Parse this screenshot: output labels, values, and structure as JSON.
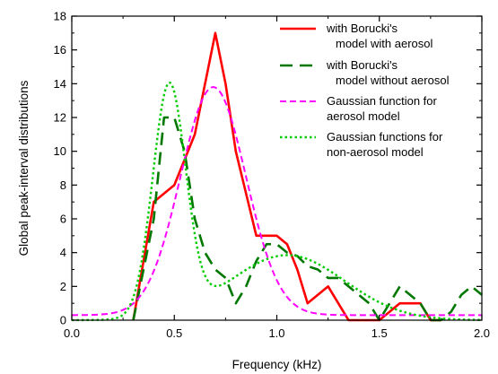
{
  "chart_data": {
    "type": "line",
    "xlabel": "Frequency (kHz)",
    "ylabel": "Global peak-interval distributions",
    "xlim": [
      0.0,
      2.0
    ],
    "ylim": [
      0,
      18
    ],
    "xticks": [
      0.0,
      0.5,
      1.0,
      1.5,
      2.0
    ],
    "xtick_labels": [
      "0.0",
      "0.5",
      "1.0",
      "1.5",
      "2.0"
    ],
    "yticks": [
      0,
      2,
      4,
      6,
      8,
      10,
      12,
      14,
      16,
      18
    ],
    "ytick_labels": [
      "0",
      "2",
      "4",
      "6",
      "8",
      "10",
      "12",
      "14",
      "16",
      "18"
    ],
    "grid": false,
    "legend_position": "top-right",
    "series": [
      {
        "name": "with Borucki's model with aerosol",
        "legend_lines": [
          "with Borucki's",
          "model with aerosol"
        ],
        "color": "#ff0000",
        "style": "solid",
        "x": [
          0.3,
          0.35,
          0.4,
          0.45,
          0.5,
          0.55,
          0.6,
          0.65,
          0.7,
          0.75,
          0.8,
          0.85,
          0.9,
          0.95,
          1.0,
          1.05,
          1.1,
          1.15,
          1.2,
          1.25,
          1.3,
          1.35,
          1.4,
          1.45,
          1.5,
          1.55,
          1.6,
          1.65,
          1.7,
          1.75,
          1.8
        ],
        "y": [
          0,
          3.5,
          7,
          7.5,
          8,
          9.5,
          11,
          14,
          17,
          14,
          10,
          7.5,
          5,
          5,
          5,
          4.5,
          3,
          1,
          1.5,
          2,
          1,
          0,
          0,
          0,
          0,
          0.5,
          1,
          1,
          1,
          0,
          0
        ]
      },
      {
        "name": "with Borucki's model without aerosol",
        "legend_lines": [
          "with Borucki's",
          "model without aerosol"
        ],
        "color": "#007700",
        "style": "dash",
        "x": [
          0.3,
          0.35,
          0.4,
          0.45,
          0.5,
          0.55,
          0.6,
          0.65,
          0.7,
          0.75,
          0.8,
          0.85,
          0.9,
          0.95,
          1.0,
          1.05,
          1.1,
          1.15,
          1.2,
          1.25,
          1.3,
          1.35,
          1.4,
          1.45,
          1.5,
          1.55,
          1.6,
          1.65,
          1.7,
          1.75,
          1.8,
          1.85,
          1.9,
          1.95,
          2.0
        ],
        "y": [
          0,
          3,
          6,
          12,
          12,
          10,
          6,
          4,
          3,
          2.5,
          1,
          2,
          3.5,
          4.5,
          4.5,
          4,
          3.8,
          3.2,
          3,
          2.5,
          2.5,
          2,
          1.5,
          1,
          0,
          1,
          2,
          1.5,
          1,
          0,
          0,
          0.5,
          1.5,
          2,
          1.5
        ]
      },
      {
        "name": "Gaussian function for aerosol model",
        "legend_lines": [
          "Gaussian function for",
          "aerosol model"
        ],
        "color": "#ff00ff",
        "style": "short-dash",
        "gaussian": {
          "y0": 0.3,
          "amplitude": 13.5,
          "center": 0.69,
          "sigma": 0.16
        },
        "x_range": [
          0.0,
          2.0
        ]
      },
      {
        "name": "Gaussian functions for non-aerosol model",
        "legend_lines": [
          "Gaussian functions for",
          "non-aerosol model"
        ],
        "color": "#00cc00",
        "style": "dot",
        "gaussians": [
          {
            "y0": 0,
            "amplitude": 13.6,
            "center": 0.475,
            "sigma": 0.08
          },
          {
            "y0": 0,
            "amplitude": 3.85,
            "center": 1.05,
            "sigma": 0.28
          }
        ],
        "x_range": [
          0.0,
          2.0
        ]
      }
    ]
  }
}
